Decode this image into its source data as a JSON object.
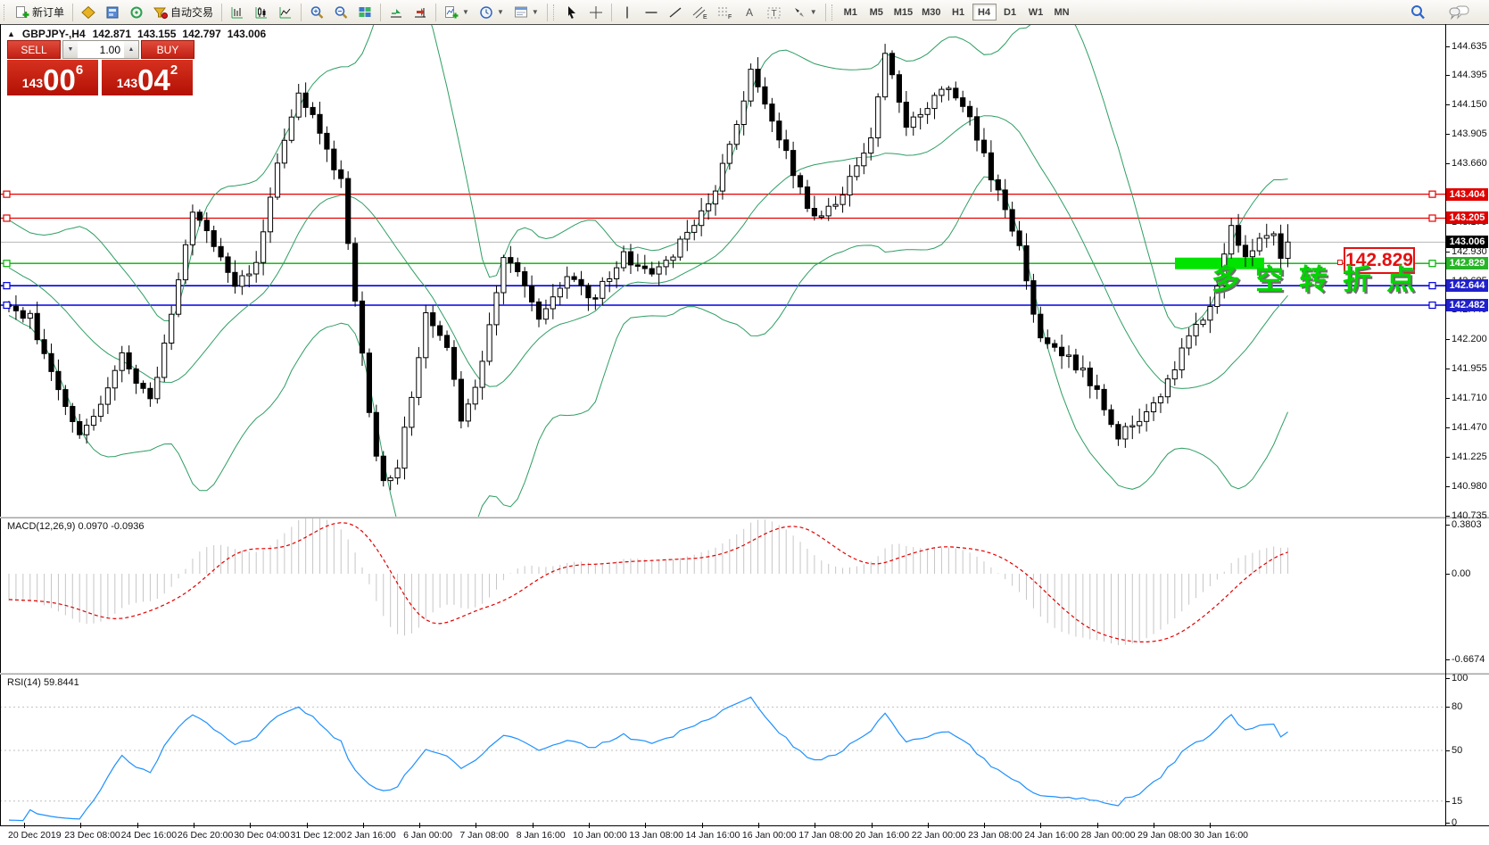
{
  "toolbar": {
    "new_order_label": "新订单",
    "autotrading_label": "自动交易",
    "timeframes": [
      {
        "label": "M1",
        "active": false
      },
      {
        "label": "M5",
        "active": false
      },
      {
        "label": "M15",
        "active": false
      },
      {
        "label": "M30",
        "active": false
      },
      {
        "label": "H1",
        "active": false
      },
      {
        "label": "H4",
        "active": true
      },
      {
        "label": "D1",
        "active": false
      },
      {
        "label": "W1",
        "active": false
      },
      {
        "label": "MN",
        "active": false
      }
    ]
  },
  "chart": {
    "title": {
      "symbol": "GBPJPY-,H4",
      "open": "142.871",
      "high": "143.155",
      "low": "142.797",
      "close": "143.006"
    },
    "trade_panel": {
      "sell_label": "SELL",
      "buy_label": "BUY",
      "volume": "1.00",
      "sell_price_prefix": "143",
      "sell_price_main": "00",
      "sell_price_sup": "6",
      "buy_price_prefix": "143",
      "buy_price_main": "04",
      "buy_price_sup": "2"
    },
    "hlines": [
      {
        "price": 143.404,
        "color": "#e60000",
        "label": "143.404",
        "badge": "#e00000",
        "width": 1.3
      },
      {
        "price": 143.205,
        "color": "#e60000",
        "label": "143.205",
        "badge": "#e00000",
        "width": 1.3
      },
      {
        "price": 142.829,
        "color": "#00b200",
        "label": "142.829",
        "badge": "#28b428",
        "width": 1.3
      },
      {
        "price": 142.644,
        "color": "#0000e0",
        "label": "142.644",
        "badge": "#2020cc",
        "width": 1.6
      },
      {
        "price": 142.482,
        "color": "#0000e0",
        "label": "142.482",
        "badge": "#2020cc",
        "width": 1.6
      }
    ],
    "bid": {
      "price": 143.006,
      "label": "143.006",
      "line_color": "#b6b6b6",
      "badge": "#000000"
    },
    "highlight": {
      "price": 142.829,
      "x_from": 1317,
      "x_to": 1417,
      "color": "#00e400",
      "thickness": 13
    },
    "callout": {
      "text": "142.829",
      "color": "#e41010"
    },
    "cn_annotation": {
      "text": "多空转折点",
      "color": "#00d600"
    },
    "price_ticks": [
      "144.635",
      "144.395",
      "144.150",
      "143.905",
      "143.660",
      "143.415",
      "143.175",
      "142.930",
      "142.685",
      "142.445",
      "142.200",
      "141.955",
      "141.710",
      "141.470",
      "141.225",
      "140.980",
      "140.735"
    ],
    "time_axis": [
      "20 Dec 2019",
      "23 Dec 08:00",
      "24 Dec 16:00",
      "26 Dec 20:00",
      "30 Dec 04:00",
      "31 Dec 12:00",
      "2 Jan 16:00",
      "6 Jan 00:00",
      "7 Jan 08:00",
      "8 Jan 16:00",
      "10 Jan 00:00",
      "13 Jan 08:00",
      "14 Jan 16:00",
      "16 Jan 00:00",
      "17 Jan 08:00",
      "20 Jan 16:00",
      "22 Jan 00:00",
      "23 Jan 08:00",
      "24 Jan 16:00",
      "28 Jan 00:00",
      "29 Jan 08:00",
      "30 Jan 16:00"
    ]
  },
  "macd": {
    "label": "MACD(12,26,9)",
    "value_main": "0.0970",
    "value_signal": "-0.0936",
    "axis": [
      "0.3803",
      "0.00",
      "-0.6674"
    ],
    "hist_color": "#c6c6c6",
    "signal_color": "#e00000"
  },
  "rsi": {
    "label": "RSI(14)",
    "value": "59.8441",
    "axis": [
      "100",
      "80",
      "50",
      "15",
      "0"
    ],
    "levels": [
      80,
      50,
      15
    ],
    "line_color": "#1e90ff"
  },
  "chart_data": {
    "type": "candlestick",
    "symbol": "GBPJPY",
    "timeframe": "H4",
    "title": "GBPJPY-,H4",
    "current_bar": {
      "open": 142.871,
      "high": 143.155,
      "low": 142.797,
      "close": 143.006
    },
    "y_range": [
      140.725,
      144.81
    ],
    "bars_total": 182,
    "warmup_bars": 34,
    "pre_start": 143.65,
    "price_path": [
      [
        0,
        142.45
      ],
      [
        3,
        142.38
      ],
      [
        8,
        141.65
      ],
      [
        10,
        141.42
      ],
      [
        13,
        141.62
      ],
      [
        16,
        142.08
      ],
      [
        20,
        141.66
      ],
      [
        26,
        143.22
      ],
      [
        29,
        143.0
      ],
      [
        32,
        142.6
      ],
      [
        35,
        142.85
      ],
      [
        38,
        143.7
      ],
      [
        41,
        144.22
      ],
      [
        44,
        143.95
      ],
      [
        47,
        143.5
      ],
      [
        49,
        142.55
      ],
      [
        51,
        141.55
      ],
      [
        53,
        140.98
      ],
      [
        55,
        141.1
      ],
      [
        59,
        142.4
      ],
      [
        62,
        142.15
      ],
      [
        64,
        141.5
      ],
      [
        67,
        142.0
      ],
      [
        70,
        142.9
      ],
      [
        73,
        142.65
      ],
      [
        75,
        142.35
      ],
      [
        79,
        142.7
      ],
      [
        83,
        142.55
      ],
      [
        87,
        142.9
      ],
      [
        91,
        142.7
      ],
      [
        95,
        143.0
      ],
      [
        99,
        143.3
      ],
      [
        103,
        143.95
      ],
      [
        105,
        144.45
      ],
      [
        108,
        144.05
      ],
      [
        111,
        143.6
      ],
      [
        114,
        143.18
      ],
      [
        118,
        143.4
      ],
      [
        122,
        143.9
      ],
      [
        124,
        144.55
      ],
      [
        127,
        144.0
      ],
      [
        130,
        144.15
      ],
      [
        133,
        144.3
      ],
      [
        136,
        144.05
      ],
      [
        140,
        143.4
      ],
      [
        143,
        142.95
      ],
      [
        146,
        142.2
      ],
      [
        150,
        142.05
      ],
      [
        153,
        141.85
      ],
      [
        157,
        141.4
      ],
      [
        160,
        141.55
      ],
      [
        163,
        141.75
      ],
      [
        167,
        142.2
      ],
      [
        171,
        142.6
      ],
      [
        173,
        143.15
      ],
      [
        175,
        142.85
      ],
      [
        178,
        143.1
      ],
      [
        181,
        143.006
      ]
    ],
    "bollinger": {
      "period": 20,
      "deviation": 2,
      "color": "#2e9e63"
    },
    "macd": {
      "fast": 12,
      "slow": 26,
      "signal": 9,
      "last_main": 0.097,
      "last_signal": -0.0936,
      "y_range": [
        -0.77,
        0.43
      ]
    },
    "rsi": {
      "period": 14,
      "last": 59.8441,
      "levels": [
        80,
        50,
        15
      ]
    },
    "hlines": [
      143.404,
      143.205,
      142.829,
      142.644,
      142.482
    ],
    "bid_price": 143.006,
    "time_span": [
      "20 Dec 2019",
      "30 Jan 16:00"
    ]
  }
}
